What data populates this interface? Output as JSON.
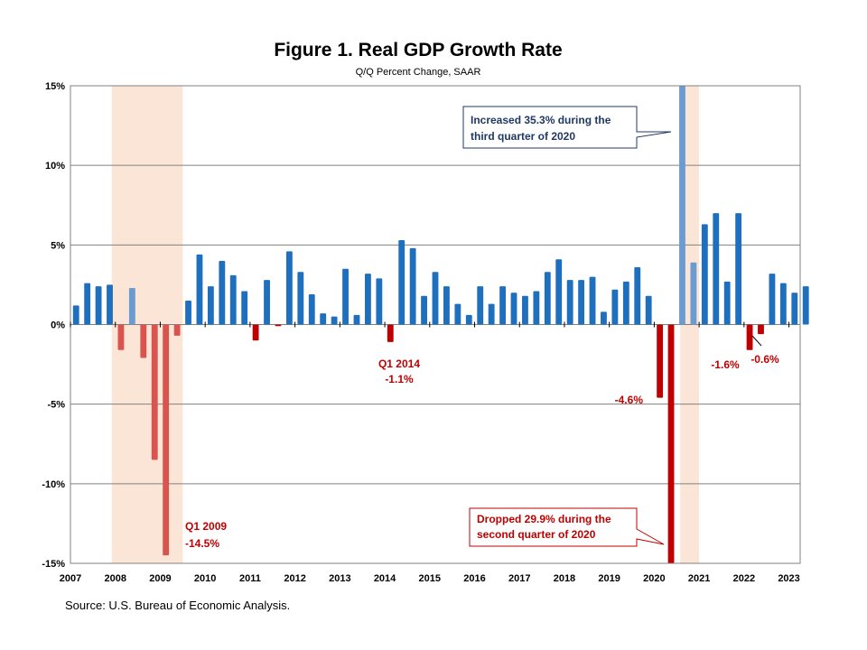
{
  "chart_data": {
    "type": "bar",
    "title": "Figure 1. Real GDP Growth Rate",
    "subtitle": "Q/Q Percent Change, SAAR",
    "source": "Source: U.S. Bureau of Economic Analysis.",
    "ylim": [
      -15,
      15
    ],
    "yticks": [
      {
        "value": 15,
        "label": "15%"
      },
      {
        "value": 10,
        "label": "10%"
      },
      {
        "value": 5,
        "label": "5%"
      },
      {
        "value": 0,
        "label": "0%"
      },
      {
        "value": -5,
        "label": "-5%"
      },
      {
        "value": -10,
        "label": "-10%"
      },
      {
        "value": -15,
        "label": "-15%"
      }
    ],
    "x_start": 2007.0,
    "x_end": 2023.25,
    "xticks": [
      "2007",
      "2008",
      "2009",
      "2010",
      "2011",
      "2012",
      "2013",
      "2014",
      "2015",
      "2016",
      "2017",
      "2018",
      "2019",
      "2020",
      "2021",
      "2022",
      "2023"
    ],
    "grid": true,
    "colors": {
      "positive": "#1f6fbf",
      "negative": "#c00000",
      "recession_positive": "#6b9bd0",
      "recession_negative": "#d9534f",
      "recession_shade": "#fbe5d6",
      "grid": "#808080"
    },
    "recessions": [
      {
        "start": 2007.92,
        "end": 2009.5
      },
      {
        "start": 2020.58,
        "end": 2021.0
      }
    ],
    "quarters": [
      {
        "period": "2007Q1",
        "value": 1.2
      },
      {
        "period": "2007Q2",
        "value": 2.6
      },
      {
        "period": "2007Q3",
        "value": 2.4
      },
      {
        "period": "2007Q4",
        "value": 2.5
      },
      {
        "period": "2008Q1",
        "value": -1.6
      },
      {
        "period": "2008Q2",
        "value": 2.3
      },
      {
        "period": "2008Q3",
        "value": -2.1
      },
      {
        "period": "2008Q4",
        "value": -8.5
      },
      {
        "period": "2009Q1",
        "value": -14.5
      },
      {
        "period": "2009Q2",
        "value": -0.7
      },
      {
        "period": "2009Q3",
        "value": 1.5
      },
      {
        "period": "2009Q4",
        "value": 4.4
      },
      {
        "period": "2010Q1",
        "value": 2.4
      },
      {
        "period": "2010Q2",
        "value": 4.0
      },
      {
        "period": "2010Q3",
        "value": 3.1
      },
      {
        "period": "2010Q4",
        "value": 2.1
      },
      {
        "period": "2011Q1",
        "value": -1.0
      },
      {
        "period": "2011Q2",
        "value": 2.8
      },
      {
        "period": "2011Q3",
        "value": -0.1
      },
      {
        "period": "2011Q4",
        "value": 4.6
      },
      {
        "period": "2012Q1",
        "value": 3.3
      },
      {
        "period": "2012Q2",
        "value": 1.9
      },
      {
        "period": "2012Q3",
        "value": 0.7
      },
      {
        "period": "2012Q4",
        "value": 0.5
      },
      {
        "period": "2013Q1",
        "value": 3.5
      },
      {
        "period": "2013Q2",
        "value": 0.6
      },
      {
        "period": "2013Q3",
        "value": 3.2
      },
      {
        "period": "2013Q4",
        "value": 2.9
      },
      {
        "period": "2014Q1",
        "value": -1.1
      },
      {
        "period": "2014Q2",
        "value": 5.3
      },
      {
        "period": "2014Q3",
        "value": 4.8
      },
      {
        "period": "2014Q4",
        "value": 1.8
      },
      {
        "period": "2015Q1",
        "value": 3.3
      },
      {
        "period": "2015Q2",
        "value": 2.4
      },
      {
        "period": "2015Q3",
        "value": 1.3
      },
      {
        "period": "2015Q4",
        "value": 0.6
      },
      {
        "period": "2016Q1",
        "value": 2.4
      },
      {
        "period": "2016Q2",
        "value": 1.3
      },
      {
        "period": "2016Q3",
        "value": 2.4
      },
      {
        "period": "2016Q4",
        "value": 2.0
      },
      {
        "period": "2017Q1",
        "value": 1.8
      },
      {
        "period": "2017Q2",
        "value": 2.1
      },
      {
        "period": "2017Q3",
        "value": 3.3
      },
      {
        "period": "2017Q4",
        "value": 4.1
      },
      {
        "period": "2018Q1",
        "value": 2.8
      },
      {
        "period": "2018Q2",
        "value": 2.8
      },
      {
        "period": "2018Q3",
        "value": 3.0
      },
      {
        "period": "2018Q4",
        "value": 0.8
      },
      {
        "period": "2019Q1",
        "value": 2.2
      },
      {
        "period": "2019Q2",
        "value": 2.7
      },
      {
        "period": "2019Q3",
        "value": 3.6
      },
      {
        "period": "2019Q4",
        "value": 1.8
      },
      {
        "period": "2020Q1",
        "value": -4.6
      },
      {
        "period": "2020Q2",
        "value": -29.9
      },
      {
        "period": "2020Q3",
        "value": 35.3
      },
      {
        "period": "2020Q4",
        "value": 3.9
      },
      {
        "period": "2021Q1",
        "value": 6.3
      },
      {
        "period": "2021Q2",
        "value": 7.0
      },
      {
        "period": "2021Q3",
        "value": 2.7
      },
      {
        "period": "2021Q4",
        "value": 7.0
      },
      {
        "period": "2022Q1",
        "value": -1.6
      },
      {
        "period": "2022Q2",
        "value": -0.6
      },
      {
        "period": "2022Q3",
        "value": 3.2
      },
      {
        "period": "2022Q4",
        "value": 2.6
      },
      {
        "period": "2023Q1",
        "value": 2.0
      },
      {
        "period": "2023Q2",
        "value": 2.4
      }
    ],
    "annotations": {
      "q1_2009": {
        "line1": "Q1 2009",
        "line2": "-14.5%"
      },
      "q1_2014": {
        "line1": "Q1 2014",
        "line2": "-1.1%"
      },
      "q1_2020": "-4.6%",
      "q1_2022": "-1.6%",
      "q2_2022": "-0.6%",
      "box_q3_2020": {
        "line1": "Increased 35.3%  during the",
        "line2": "third quarter of 2020"
      },
      "box_q2_2020": {
        "line1": "Dropped 29.9%  during the",
        "line2": "second quarter of 2020"
      }
    }
  }
}
